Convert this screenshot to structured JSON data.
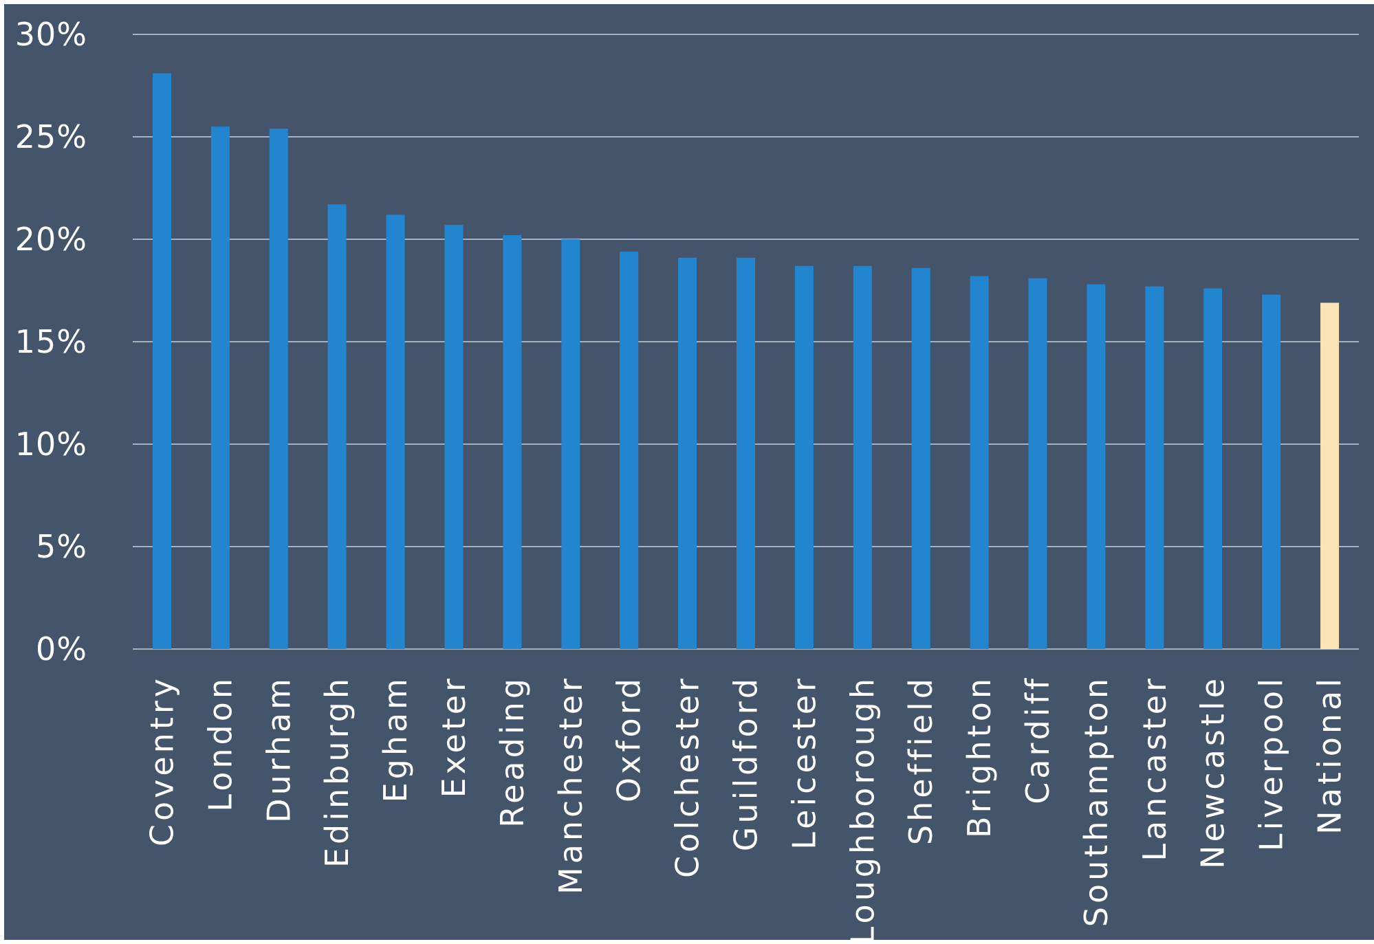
{
  "chart_data": {
    "type": "bar",
    "title": "",
    "xlabel": "",
    "ylabel": "",
    "categories": [
      "Coventry",
      "London",
      "Durham",
      "Edinburgh",
      "Egham",
      "Exeter",
      "Reading",
      "Manchester",
      "Oxford",
      "Colchester",
      "Guildford",
      "Leicester",
      "Loughborough",
      "Sheffield",
      "Brighton",
      "Cardiff",
      "Southampton",
      "Lancaster",
      "Newcastle",
      "Liverpool",
      "National"
    ],
    "values": [
      28.1,
      25.5,
      25.4,
      21.7,
      21.2,
      20.7,
      20.2,
      20.0,
      19.4,
      19.1,
      19.1,
      18.7,
      18.7,
      18.6,
      18.2,
      18.1,
      17.8,
      17.7,
      17.6,
      17.3,
      16.9
    ],
    "ylim": [
      0,
      30
    ],
    "yticks": [
      0,
      5,
      10,
      15,
      20,
      25,
      30
    ],
    "ytick_labels": [
      "0%",
      "5%",
      "10%",
      "15%",
      "20%",
      "25%",
      "30%"
    ],
    "grid": true,
    "legend": "none",
    "colors": {
      "background": "#44546a",
      "bar": "#2185d0",
      "highlight_bar": "#fbe5b6",
      "gridline": "#c8d0dc",
      "text": "#ffffff"
    },
    "highlight_category": "National"
  }
}
